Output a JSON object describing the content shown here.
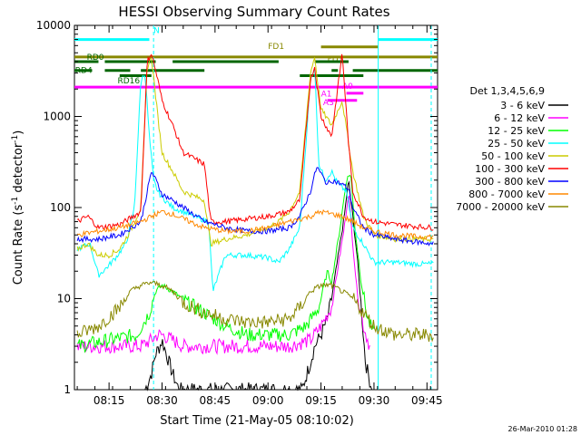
{
  "chart_data": {
    "type": "line",
    "title": "HESSI Observing Summary Count Rates",
    "xlabel": "Start Time (21-May-05 08:10:02)",
    "ylabel_main": "Count Rate (s",
    "ylabel_sup1": "-1",
    "ylabel_mid": " detector",
    "ylabel_sup2": "-1",
    "ylabel_end": ")",
    "y_scale": "log",
    "ylim": [
      1,
      10000
    ],
    "xlim": [
      8.0867,
      9.8
    ],
    "x_ticks": [
      {
        "label": "08:15",
        "value": 8.25
      },
      {
        "label": "08:30",
        "value": 8.5
      },
      {
        "label": "08:45",
        "value": 8.75
      },
      {
        "label": "09:00",
        "value": 9.0
      },
      {
        "label": "09:15",
        "value": 9.25
      },
      {
        "label": "09:30",
        "value": 9.5
      },
      {
        "label": "09:45",
        "value": 9.75
      }
    ],
    "y_ticks": [
      {
        "label": "1",
        "value": 1
      },
      {
        "label": "10",
        "value": 10
      },
      {
        "label": "100",
        "value": 100
      },
      {
        "label": "1000",
        "value": 1000
      },
      {
        "label": "10000",
        "value": 10000
      }
    ],
    "legend_header": "Det 1,3,4,5,6,9",
    "legend_position": "right",
    "series": [
      {
        "name": "3 - 6 keV",
        "color": "#000000",
        "x": [
          8.42,
          8.45,
          8.47,
          8.49,
          8.5,
          8.52,
          8.55,
          8.58,
          9.16,
          9.2,
          9.22,
          9.25,
          9.28,
          9.3,
          9.34,
          9.36,
          9.38,
          9.4,
          9.42,
          9.44,
          9.46,
          9.49
        ],
        "y": [
          1,
          1.5,
          2.5,
          3,
          3.5,
          2.5,
          1.5,
          1,
          1,
          2,
          3,
          4,
          6,
          10,
          40,
          80,
          200,
          80,
          30,
          8,
          2,
          1
        ]
      },
      {
        "name": "6 - 12 keV",
        "color": "#ff00ff",
        "x": [
          8.1,
          8.4,
          8.45,
          8.48,
          8.5,
          8.55,
          8.6,
          8.7,
          8.9,
          9.1,
          9.2,
          9.25,
          9.3,
          9.36,
          9.38,
          9.4,
          9.42,
          9.45,
          9.48
        ],
        "y": [
          3,
          3,
          3.5,
          4,
          4,
          3.5,
          3,
          3,
          3,
          3,
          3.5,
          5,
          8,
          60,
          150,
          40,
          12,
          5,
          3
        ]
      },
      {
        "name": "12 - 25 keV",
        "color": "#00ff00",
        "x": [
          8.1,
          8.38,
          8.44,
          8.47,
          8.5,
          8.55,
          8.62,
          8.7,
          8.8,
          8.9,
          9.0,
          9.1,
          9.18,
          9.24,
          9.28,
          9.3,
          9.34,
          9.37,
          9.39,
          9.41,
          9.44,
          9.47,
          9.5
        ],
        "y": [
          3,
          4,
          7,
          12,
          14,
          12,
          9,
          7,
          5,
          4,
          4,
          4,
          5,
          8,
          20,
          15,
          60,
          200,
          240,
          60,
          15,
          6,
          4
        ]
      },
      {
        "name": "25 - 50 keV",
        "color": "#00ffff",
        "x": [
          8.1,
          8.16,
          8.2,
          8.24,
          8.28,
          8.33,
          8.37,
          8.4,
          8.42,
          8.44,
          8.46,
          8.48,
          8.5,
          8.55,
          8.6,
          8.65,
          8.72,
          8.74,
          8.8,
          8.9,
          9.0,
          9.05,
          9.1,
          9.15,
          9.2,
          9.22,
          9.24,
          9.27,
          9.3,
          9.33,
          9.37,
          9.4,
          9.45,
          9.5,
          9.6,
          9.7,
          9.78
        ],
        "y": [
          35,
          40,
          18,
          22,
          28,
          40,
          100,
          2500,
          3000,
          600,
          200,
          150,
          130,
          100,
          90,
          80,
          70,
          12,
          30,
          30,
          28,
          25,
          35,
          60,
          2500,
          3500,
          300,
          200,
          250,
          180,
          150,
          60,
          40,
          25,
          25,
          24,
          24
        ]
      },
      {
        "name": "50 - 100 keV",
        "color": "#cccc00",
        "x": [
          8.1,
          8.15,
          8.2,
          8.25,
          8.3,
          8.35,
          8.4,
          8.43,
          8.45,
          8.48,
          8.5,
          8.55,
          8.6,
          8.7,
          8.73,
          8.8,
          8.9,
          9.0,
          9.05,
          9.1,
          9.15,
          9.2,
          9.22,
          9.25,
          9.3,
          9.35,
          9.4,
          9.45,
          9.5,
          9.6,
          9.7,
          9.78
        ],
        "y": [
          35,
          40,
          30,
          30,
          35,
          55,
          100,
          3500,
          4500,
          1000,
          400,
          250,
          150,
          120,
          40,
          45,
          50,
          60,
          70,
          90,
          150,
          3000,
          4500,
          1200,
          800,
          1500,
          250,
          80,
          50,
          45,
          45,
          45
        ]
      },
      {
        "name": "100 - 300 keV",
        "color": "#ff0000",
        "x": [
          8.1,
          8.15,
          8.2,
          8.3,
          8.4,
          8.43,
          8.45,
          8.48,
          8.5,
          8.55,
          8.6,
          8.7,
          8.73,
          8.8,
          8.9,
          9.0,
          9.1,
          9.15,
          9.2,
          9.22,
          9.25,
          9.3,
          9.35,
          9.38,
          9.4,
          9.45,
          9.5,
          9.6,
          9.7,
          9.78
        ],
        "y": [
          70,
          80,
          60,
          65,
          90,
          4000,
          5000,
          2500,
          1500,
          800,
          400,
          300,
          70,
          70,
          75,
          80,
          90,
          120,
          2500,
          3500,
          1000,
          600,
          5000,
          500,
          150,
          80,
          70,
          65,
          62,
          60
        ]
      },
      {
        "name": "300 - 800 keV",
        "color": "#0000ff",
        "x": [
          8.1,
          8.15,
          8.2,
          8.3,
          8.4,
          8.43,
          8.45,
          8.48,
          8.5,
          8.55,
          8.6,
          8.7,
          8.8,
          8.9,
          9.0,
          9.1,
          9.15,
          9.2,
          9.23,
          9.28,
          9.3,
          9.35,
          9.38,
          9.4,
          9.45,
          9.5,
          9.6,
          9.7,
          9.78
        ],
        "y": [
          45,
          45,
          45,
          50,
          70,
          150,
          250,
          180,
          140,
          120,
          100,
          70,
          60,
          55,
          55,
          60,
          80,
          150,
          280,
          180,
          200,
          180,
          160,
          100,
          60,
          50,
          45,
          42,
          40
        ]
      },
      {
        "name": "800 - 7000 keV",
        "color": "#ff8800",
        "x": [
          8.1,
          8.2,
          8.3,
          8.4,
          8.45,
          8.5,
          8.55,
          8.6,
          8.7,
          8.8,
          8.9,
          9.0,
          9.1,
          9.2,
          9.25,
          9.3,
          9.35,
          9.4,
          9.45,
          9.5,
          9.6,
          9.7,
          9.78
        ],
        "y": [
          50,
          55,
          60,
          70,
          80,
          90,
          85,
          75,
          60,
          55,
          55,
          60,
          70,
          80,
          90,
          85,
          80,
          70,
          60,
          55,
          50,
          48,
          48
        ]
      },
      {
        "name": "7000 - 20000 keV",
        "color": "#888800",
        "x": [
          8.1,
          8.2,
          8.3,
          8.35,
          8.4,
          8.45,
          8.5,
          8.55,
          8.6,
          8.7,
          8.8,
          8.9,
          9.0,
          9.1,
          9.15,
          9.2,
          9.25,
          9.3,
          9.35,
          9.4,
          9.45,
          9.5,
          9.6,
          9.7,
          9.78
        ],
        "y": [
          4,
          5,
          8,
          12,
          14,
          15,
          14,
          12,
          9,
          7,
          6,
          5.5,
          5.5,
          6,
          8,
          12,
          14,
          14,
          12,
          10,
          7,
          5,
          4,
          4,
          4
        ]
      }
    ],
    "state_bars": [
      {
        "label": "N",
        "color": "#00ffff",
        "y": 7000,
        "segments": [
          [
            8.0867,
            8.44
          ],
          [
            9.52,
            9.8
          ]
        ],
        "label_x": 8.46,
        "label_y": 8200
      },
      {
        "label": "FD1",
        "color": "#888800",
        "y": 4500,
        "segments": [
          [
            8.0867,
            9.8
          ]
        ],
        "label_x": 9.0,
        "label_y": 5500
      },
      {
        "label": "FD3",
        "color": "#888800",
        "y": 5800,
        "segments": [
          [
            9.25,
            9.52
          ]
        ],
        "label_x": 9.28,
        "label_y": 4000
      },
      {
        "label": "RD0",
        "color": "#006600",
        "y": 4000,
        "segments": [
          [
            8.0867,
            8.2
          ],
          [
            8.23,
            8.47
          ],
          [
            8.55,
            9.05
          ],
          [
            9.22,
            9.38
          ]
        ],
        "label_x": 8.145,
        "label_y": 4200
      },
      {
        "label": "RD4",
        "color": "#006600",
        "y": 3200,
        "segments": [
          [
            8.0867,
            8.17
          ],
          [
            8.23,
            8.35
          ],
          [
            8.4,
            8.7
          ],
          [
            9.3,
            9.33
          ],
          [
            9.4,
            9.8
          ]
        ],
        "label_x": 8.09,
        "label_y": 3000
      },
      {
        "label": "RD16",
        "color": "#006600",
        "y": 2800,
        "segments": [
          [
            8.3,
            8.45
          ],
          [
            9.15,
            9.45
          ]
        ],
        "label_x": 8.29,
        "label_y": 2300
      },
      {
        "label": "A0",
        "color": "#ff00ff",
        "y": 2100,
        "segments": [
          [
            8.0867,
            9.8
          ]
        ],
        "label_x": 9.35,
        "label_y": 2000
      },
      {
        "label": "A1",
        "color": "#ff00ff",
        "y": 1800,
        "segments": [
          [
            9.37,
            9.45
          ]
        ],
        "label_x": 9.25,
        "label_y": 1650
      },
      {
        "label": "A3",
        "color": "#ff00ff",
        "y": 1500,
        "segments": [
          [
            9.28,
            9.42
          ]
        ],
        "label_x": 9.26,
        "label_y": 1330
      }
    ],
    "vertical_lines": [
      {
        "x": 8.46,
        "color": "#00ffff",
        "style": "dashed"
      },
      {
        "x": 9.52,
        "color": "#00ffff",
        "style": "solid"
      },
      {
        "x": 9.77,
        "color": "#00ffff",
        "style": "dashed"
      }
    ],
    "footer_date": "26-Mar-2010 01:28"
  }
}
